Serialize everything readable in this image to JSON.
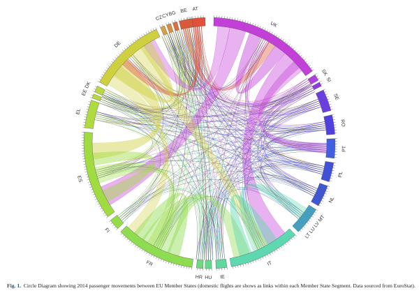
{
  "figure": {
    "segments": [
      {
        "label": "AT"
      },
      {
        "label": "UK"
      },
      {
        "label": "SK"
      },
      {
        "label": "SI"
      },
      {
        "label": "SE"
      },
      {
        "label": "RO"
      },
      {
        "label": "PT"
      },
      {
        "label": "PL"
      },
      {
        "label": "NL"
      },
      {
        "label": "LT LU LV MT"
      },
      {
        "label": "IT"
      },
      {
        "label": "IE"
      },
      {
        "label": "HU"
      },
      {
        "label": "HR"
      },
      {
        "label": "FR"
      },
      {
        "label": "FI"
      },
      {
        "label": "ES"
      },
      {
        "label": "EL"
      },
      {
        "label": "EE"
      },
      {
        "label": "DK"
      },
      {
        "label": "DE"
      },
      {
        "label": "CZ"
      },
      {
        "label": "CY"
      },
      {
        "label": "BG"
      },
      {
        "label": "BE"
      }
    ],
    "caption": {
      "label": "Fig. 1.",
      "text": "Circle Diagram showing 2014 passenger movements between EU Member States (domestic flights are shows as links within each Member State Segment. Data sourced from EuroStat)."
    }
  }
}
